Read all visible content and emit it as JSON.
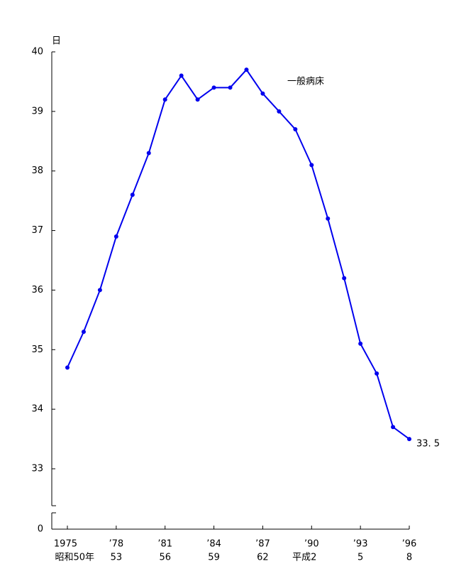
{
  "chart_data": {
    "type": "line",
    "y_unit": "日",
    "categories": [
      "1975",
      null,
      null,
      "’78",
      null,
      null,
      "’81",
      null,
      null,
      "’84",
      null,
      null,
      "’87",
      null,
      null,
      "’90",
      null,
      null,
      "’93",
      null,
      null,
      "’96"
    ],
    "categories_sub": [
      "昭和50年",
      null,
      null,
      "53",
      null,
      null,
      "56",
      null,
      null,
      "59",
      null,
      null,
      "62",
      null,
      null,
      "平成2",
      null,
      null,
      "5",
      null,
      null,
      "8"
    ],
    "series": [
      {
        "name": "一般病床",
        "color": "#0000ee",
        "values": [
          34.7,
          35.3,
          36.0,
          36.9,
          37.6,
          38.3,
          39.2,
          39.6,
          39.2,
          39.4,
          39.4,
          39.7,
          39.3,
          39.0,
          38.7,
          38.1,
          37.2,
          36.2,
          35.1,
          34.6,
          33.7,
          33.5
        ],
        "value_labels": [
          null,
          null,
          null,
          null,
          null,
          null,
          null,
          null,
          null,
          null,
          null,
          null,
          null,
          null,
          null,
          null,
          null,
          null,
          null,
          null,
          null,
          "33. 5"
        ]
      }
    ],
    "ylim": [
      33,
      40
    ],
    "yticks": [
      33,
      34,
      35,
      36,
      37,
      38,
      39,
      40
    ],
    "y_break_tick": 0
  }
}
